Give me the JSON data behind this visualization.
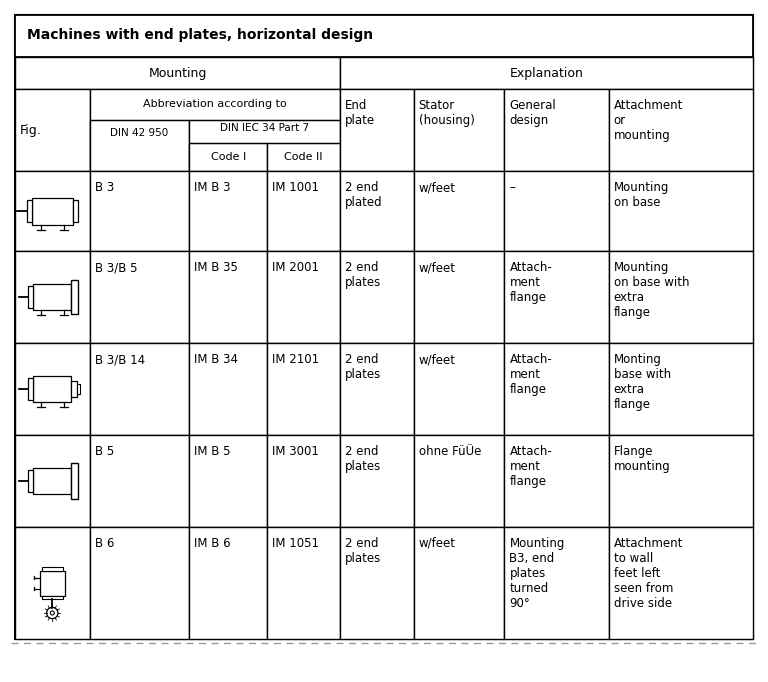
{
  "title": "Machines with end plates, horizontal design",
  "rows": [
    [
      "B 3",
      "IM B 3",
      "IM 1001",
      "2 end\nplated",
      "w/feet",
      "–",
      "Mounting\non base"
    ],
    [
      "B 3/B 5",
      "IM B 35",
      "IM 2001",
      "2 end\nplates",
      "w/feet",
      "Attach-\nment\nflange",
      "Mounting\non base with\nextra\nflange"
    ],
    [
      "B 3/B 14",
      "IM B 34",
      "IM 2101",
      "2 end\nplates",
      "w/feet",
      "Attach-\nment\nflange",
      "Monting\nbase with\nextra\nflange"
    ],
    [
      "B 5",
      "IM B 5",
      "IM 3001",
      "2 end\nplates",
      "ohne FüÜe",
      "Attach-\nment\nflange",
      "Flange\nmounting"
    ],
    [
      "B 6",
      "IM B 6",
      "IM 1051",
      "2 end\nplates",
      "w/feet",
      "Mounting\nB3, end\nplates\nturned\n90°",
      "Attachment\nto wall\nfeet left\nseen from\ndrive side"
    ]
  ],
  "background_color": "#ffffff",
  "text_color": "#000000",
  "fig_w": 7.68,
  "fig_h": 6.82
}
